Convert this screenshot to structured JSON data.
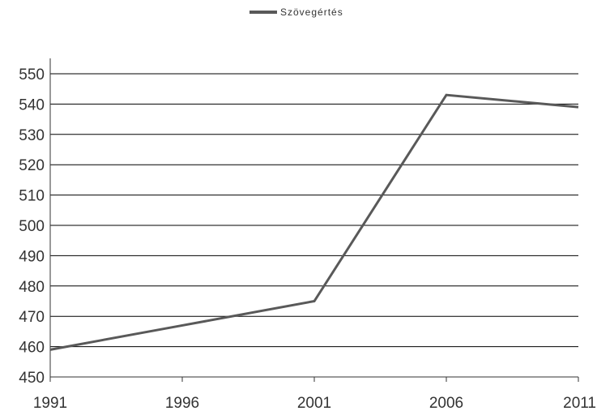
{
  "chart_data": {
    "type": "line",
    "title": "",
    "xlabel": "",
    "ylabel": "",
    "x": [
      1991,
      1996,
      2001,
      2006,
      2011
    ],
    "x_tick_labels": [
      "1991",
      "1996",
      "2001",
      "2006",
      "2011"
    ],
    "y_tick_labels": [
      "450",
      "460",
      "470",
      "480",
      "490",
      "500",
      "510",
      "520",
      "530",
      "540",
      "550"
    ],
    "y_ticks": [
      450,
      460,
      470,
      480,
      490,
      500,
      510,
      520,
      530,
      540,
      550
    ],
    "xlim": [
      1991,
      2011
    ],
    "ylim": [
      450,
      555
    ],
    "grid": true,
    "legend_position": "top",
    "series": [
      {
        "name": "Szövegértés",
        "values": [
          459,
          467,
          475,
          543,
          539
        ],
        "color": "#595959"
      }
    ]
  }
}
